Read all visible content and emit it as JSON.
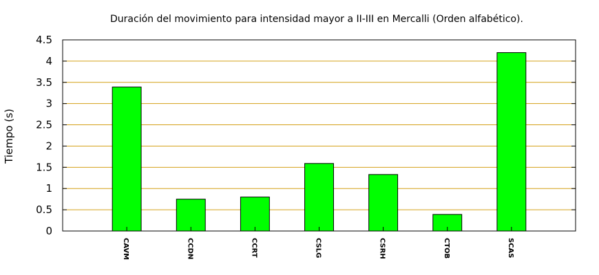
{
  "chart_data": {
    "type": "bar",
    "title": "Duración del movimiento para intensidad mayor a II-III en Mercalli (Orden alfabético).",
    "xlabel": "",
    "ylabel": "Tiempo (s)",
    "ylim": [
      0,
      4.5
    ],
    "yticks": [
      "0",
      "0.5",
      "1",
      "1.5",
      "2",
      "2.5",
      "3",
      "3.5",
      "4",
      "4.5"
    ],
    "categories": [
      "CAVM",
      "CCDN",
      "CCRT",
      "CSLG",
      "CSRH",
      "CTOB",
      "SCAS"
    ],
    "values": [
      3.39,
      0.75,
      0.8,
      1.59,
      1.33,
      0.39,
      4.2
    ],
    "grid": true,
    "colors": {
      "bar": "#00ff00",
      "grid": "#d4a017",
      "axis": "#000000"
    }
  }
}
